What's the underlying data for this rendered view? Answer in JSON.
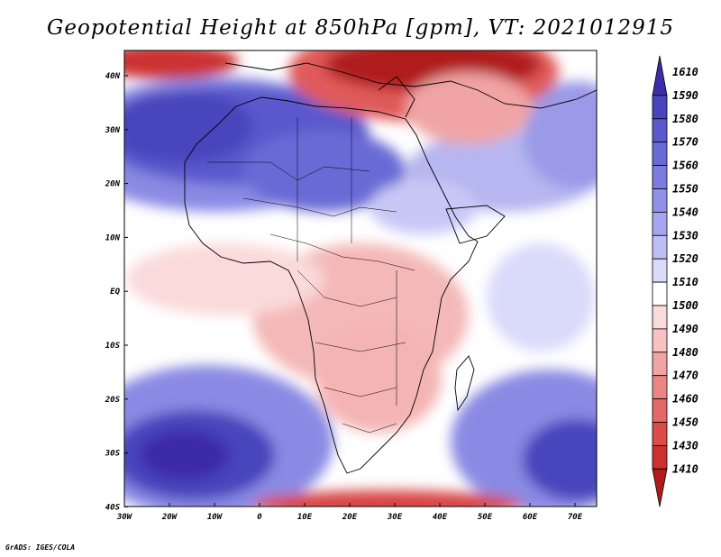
{
  "title": "Geopotential Height at 850hPa [gpm], VT: 2021012915",
  "credit": "GrADS: IGES/COLA",
  "map": {
    "lon_ticks": [
      "30W",
      "20W",
      "10W",
      "0",
      "10E",
      "20E",
      "30E",
      "40E",
      "50E",
      "60E",
      "70E"
    ],
    "lat_ticks": [
      "40N",
      "30N",
      "20N",
      "10N",
      "EQ",
      "10S",
      "20S",
      "30S",
      "40S"
    ]
  },
  "colorbar": {
    "levels": [
      "1610",
      "1590",
      "1580",
      "1570",
      "1560",
      "1550",
      "1540",
      "1530",
      "1520",
      "1510",
      "1500",
      "1490",
      "1480",
      "1470",
      "1460",
      "1450",
      "1430",
      "1410"
    ],
    "colors": [
      "#3c2ca8",
      "#4a44bc",
      "#5a58cc",
      "#6a6ad6",
      "#7c7cde",
      "#9090e6",
      "#a6a6ee",
      "#bebef4",
      "#dadafa",
      "#ffffff",
      "#fadada",
      "#f6c2c2",
      "#f0a4a4",
      "#ea8686",
      "#e46868",
      "#dc4a4a",
      "#cc3030",
      "#b01c1c"
    ]
  },
  "colors": {
    "background": "#ffffff",
    "low": "#b01c1c",
    "high": "#3c2ca8",
    "neutral": "#ffffff"
  }
}
